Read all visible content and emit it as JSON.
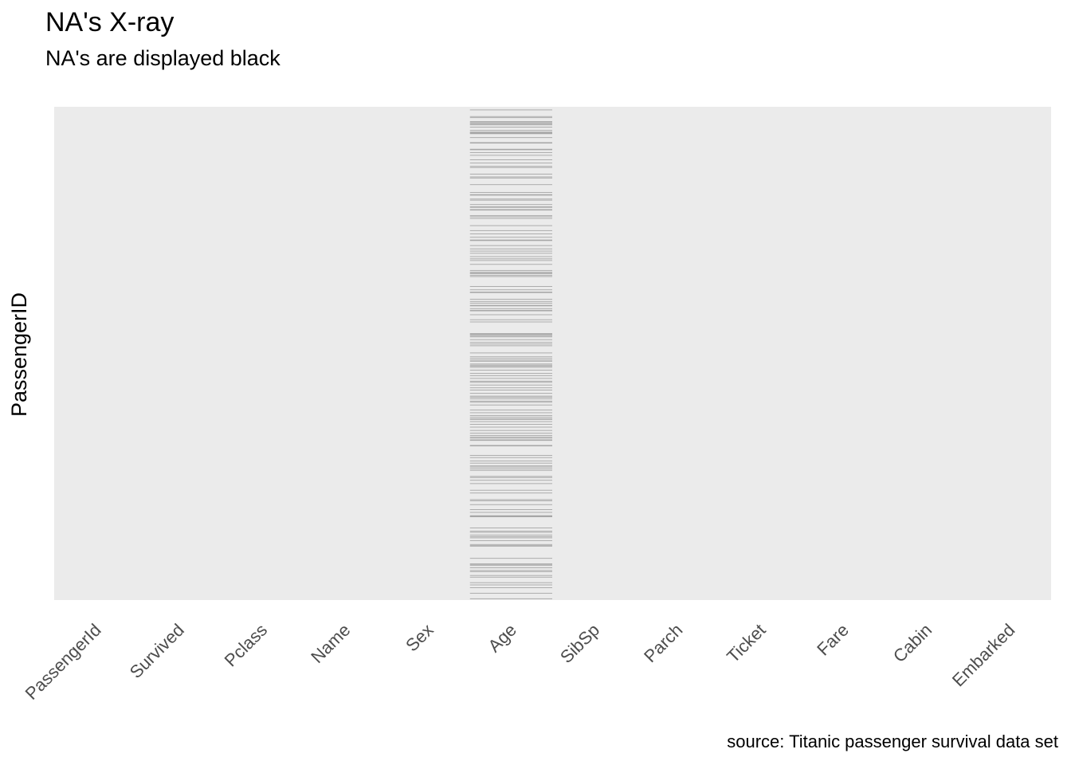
{
  "chart_data": {
    "type": "heatmap",
    "title": "NA's X-ray",
    "subtitle": "NA's are displayed black",
    "ylabel": "PassengerID",
    "xlabel": "",
    "caption": "source: Titanic passenger survival data set",
    "categories": [
      "PassengerId",
      "Survived",
      "Pclass",
      "Name",
      "Sex",
      "Age",
      "SibSp",
      "Parch",
      "Ticket",
      "Fare",
      "Cabin",
      "Embarked"
    ],
    "n_rows": 891,
    "missing_column": "Age",
    "missing_row_ids": [
      6,
      18,
      20,
      27,
      29,
      30,
      32,
      33,
      37,
      43,
      46,
      47,
      48,
      49,
      56,
      65,
      66,
      77,
      78,
      83,
      88,
      96,
      102,
      108,
      110,
      122,
      127,
      129,
      141,
      155,
      159,
      160,
      167,
      169,
      177,
      181,
      182,
      186,
      187,
      197,
      199,
      202,
      215,
      224,
      230,
      236,
      241,
      242,
      251,
      257,
      261,
      265,
      271,
      275,
      278,
      285,
      296,
      299,
      301,
      302,
      305,
      307,
      325,
      331,
      335,
      336,
      348,
      352,
      355,
      359,
      360,
      365,
      368,
      369,
      376,
      385,
      389,
      410,
      411,
      412,
      414,
      416,
      421,
      426,
      429,
      432,
      445,
      452,
      455,
      458,
      460,
      465,
      467,
      469,
      471,
      476,
      482,
      486,
      491,
      496,
      498,
      503,
      508,
      512,
      518,
      523,
      525,
      528,
      532,
      534,
      539,
      548,
      553,
      558,
      561,
      564,
      565,
      569,
      574,
      579,
      585,
      590,
      594,
      597,
      599,
      602,
      603,
      612,
      613,
      630,
      634,
      640,
      644,
      649,
      651,
      654,
      657,
      668,
      670,
      675,
      681,
      693,
      698,
      710,
      712,
      719,
      728,
      733,
      739,
      740,
      741,
      761,
      767,
      769,
      774,
      777,
      779,
      784,
      791,
      793,
      794,
      816,
      826,
      827,
      829,
      833,
      838,
      840,
      847,
      850,
      860,
      864,
      869,
      879,
      889
    ],
    "colors": {
      "panel_background": "#ebebeb",
      "missing_mark": "#a6a6a6",
      "axis_text": "#4d4d4d"
    }
  }
}
